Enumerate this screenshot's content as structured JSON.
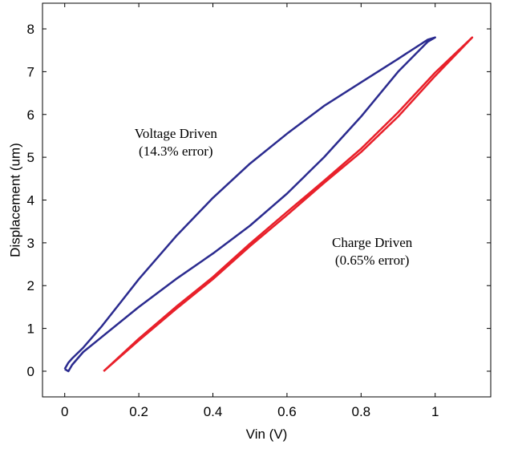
{
  "chart_data": {
    "type": "line",
    "title": "",
    "xlabel": "Vin (V)",
    "ylabel": "Displacement (um)",
    "xlim": [
      -0.06,
      1.15
    ],
    "ylim": [
      -0.6,
      8.6
    ],
    "xticks": [
      0,
      0.2,
      0.4,
      0.6,
      0.8,
      1
    ],
    "xtick_labels": [
      "0",
      "0.2",
      "0.4",
      "0.6",
      "0.8",
      "1"
    ],
    "yticks": [
      0,
      1,
      2,
      3,
      4,
      5,
      6,
      7,
      8
    ],
    "ytick_labels": [
      "0",
      "1",
      "2",
      "3",
      "4",
      "5",
      "6",
      "7",
      "8"
    ],
    "grid": false,
    "series": [
      {
        "color": "#2b2b8f",
        "points": [
          [
            0.0,
            0.05
          ],
          [
            0.01,
            0.2
          ],
          [
            0.02,
            0.3
          ],
          [
            0.05,
            0.55
          ],
          [
            0.1,
            1.05
          ],
          [
            0.15,
            1.6
          ],
          [
            0.2,
            2.15
          ],
          [
            0.3,
            3.15
          ],
          [
            0.4,
            4.05
          ],
          [
            0.5,
            4.85
          ],
          [
            0.6,
            5.55
          ],
          [
            0.7,
            6.2
          ],
          [
            0.8,
            6.75
          ],
          [
            0.9,
            7.3
          ],
          [
            0.98,
            7.75
          ],
          [
            1.0,
            7.8
          ],
          [
            0.98,
            7.7
          ],
          [
            0.9,
            7.0
          ],
          [
            0.8,
            5.95
          ],
          [
            0.7,
            5.0
          ],
          [
            0.6,
            4.15
          ],
          [
            0.5,
            3.4
          ],
          [
            0.4,
            2.75
          ],
          [
            0.3,
            2.15
          ],
          [
            0.2,
            1.5
          ],
          [
            0.1,
            0.8
          ],
          [
            0.05,
            0.45
          ],
          [
            0.02,
            0.15
          ],
          [
            0.01,
            0.0
          ],
          [
            0.0,
            0.05
          ]
        ]
      },
      {
        "color": "#e8202a",
        "points": [
          [
            0.105,
            0.0
          ],
          [
            0.2,
            0.72
          ],
          [
            0.3,
            1.45
          ],
          [
            0.4,
            2.15
          ],
          [
            0.5,
            2.92
          ],
          [
            0.6,
            3.65
          ],
          [
            0.7,
            4.4
          ],
          [
            0.8,
            5.12
          ],
          [
            0.9,
            5.95
          ],
          [
            1.0,
            6.9
          ],
          [
            1.1,
            7.8
          ],
          [
            1.0,
            6.98
          ],
          [
            0.9,
            6.05
          ],
          [
            0.8,
            5.2
          ],
          [
            0.7,
            4.45
          ],
          [
            0.6,
            3.72
          ],
          [
            0.5,
            2.98
          ],
          [
            0.4,
            2.2
          ],
          [
            0.3,
            1.5
          ],
          [
            0.2,
            0.76
          ],
          [
            0.105,
            0.0
          ]
        ]
      }
    ],
    "annotations": [
      {
        "lines": [
          "Voltage Driven",
          "(14.3% error)"
        ],
        "x": 0.3,
        "y": 5.45
      },
      {
        "lines": [
          "Charge Driven",
          "(0.65% error)"
        ],
        "x": 0.83,
        "y": 2.9
      }
    ]
  }
}
